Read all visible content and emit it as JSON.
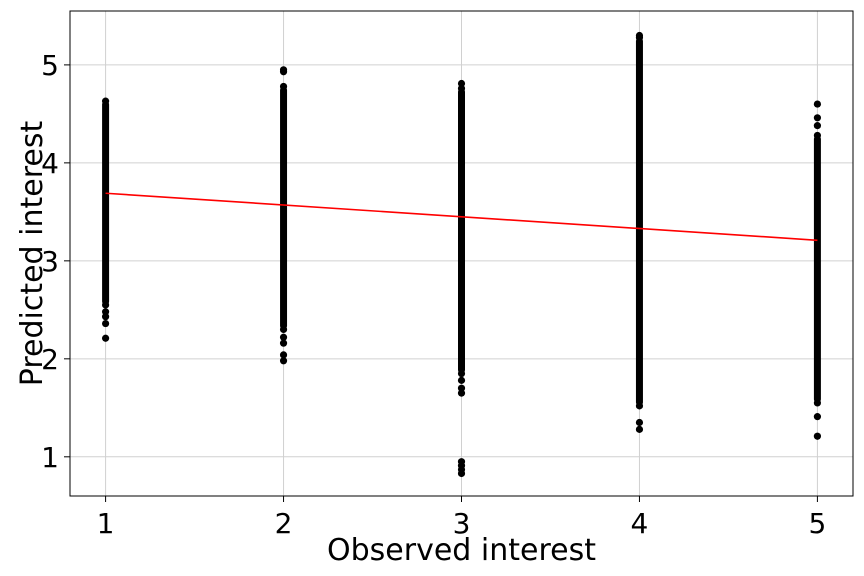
{
  "chart_data": {
    "type": "scatter",
    "title": "",
    "xlabel": "Observed interest",
    "ylabel": "Predicted interest",
    "xlim": [
      0.8,
      5.2
    ],
    "ylim": [
      0.6,
      5.55
    ],
    "xticks": [
      1,
      2,
      3,
      4,
      5
    ],
    "yticks": [
      1,
      2,
      3,
      4,
      5
    ],
    "grid": true,
    "point_color": "#000000",
    "series": [
      {
        "type": "scatter",
        "dense_ranges": [
          {
            "x": 1,
            "y_min": 2.55,
            "y_max": 4.63
          },
          {
            "x": 2,
            "y_min": 2.3,
            "y_max": 4.78
          },
          {
            "x": 3,
            "y_min": 1.85,
            "y_max": 4.76
          },
          {
            "x": 4,
            "y_min": 1.52,
            "y_max": 5.28
          },
          {
            "x": 5,
            "y_min": 1.55,
            "y_max": 4.28
          }
        ],
        "outliers": [
          {
            "x": 1,
            "y": 2.48
          },
          {
            "x": 1,
            "y": 2.43
          },
          {
            "x": 1,
            "y": 2.36
          },
          {
            "x": 1,
            "y": 2.21
          },
          {
            "x": 2,
            "y": 4.95
          },
          {
            "x": 2,
            "y": 4.93
          },
          {
            "x": 2,
            "y": 2.22
          },
          {
            "x": 2,
            "y": 2.16
          },
          {
            "x": 2,
            "y": 2.04
          },
          {
            "x": 2,
            "y": 1.98
          },
          {
            "x": 3,
            "y": 4.81
          },
          {
            "x": 3,
            "y": 1.78
          },
          {
            "x": 3,
            "y": 1.7
          },
          {
            "x": 3,
            "y": 1.65
          },
          {
            "x": 3,
            "y": 0.95
          },
          {
            "x": 3,
            "y": 0.91
          },
          {
            "x": 3,
            "y": 0.87
          },
          {
            "x": 3,
            "y": 0.83
          },
          {
            "x": 4,
            "y": 5.3
          },
          {
            "x": 4,
            "y": 1.35
          },
          {
            "x": 4,
            "y": 1.28
          },
          {
            "x": 5,
            "y": 4.6
          },
          {
            "x": 5,
            "y": 4.46
          },
          {
            "x": 5,
            "y": 4.38
          },
          {
            "x": 5,
            "y": 1.41
          },
          {
            "x": 5,
            "y": 1.21
          }
        ]
      },
      {
        "type": "line",
        "color": "#ff0000",
        "x": [
          1,
          5
        ],
        "y": [
          3.69,
          3.21
        ]
      }
    ]
  }
}
